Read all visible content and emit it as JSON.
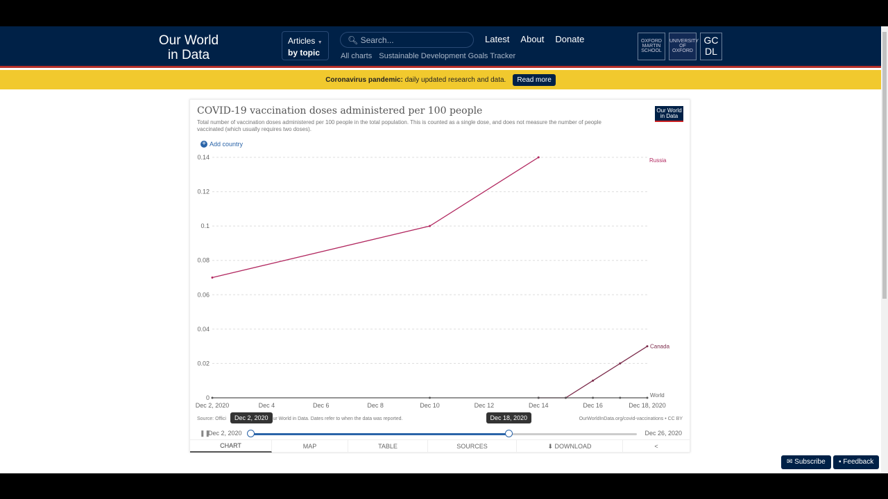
{
  "nav": {
    "logo_line1": "Our World",
    "logo_line2": "in Data",
    "articles": "Articles",
    "by_topic": "by topic",
    "search_placeholder": "Search...",
    "links": [
      "Latest",
      "About",
      "Donate"
    ],
    "sublinks": [
      "All charts",
      "Sustainable Development Goals Tracker"
    ],
    "partners": [
      "OXFORD MARTIN SCHOOL",
      "UNIVERSITY OF OXFORD",
      "GC DL"
    ]
  },
  "banner": {
    "bold": "Coronavirus pandemic:",
    "text": "daily updated research and data.",
    "button": "Read more"
  },
  "card": {
    "badge": "Our World in Data",
    "add_country": "Add country",
    "source": "Source: Official data collated by Our World in Data. Dates refer to when the data was reported.",
    "source_visible_left": "Source: Offici",
    "source_visible_right": "Our World in Data. Dates refer to when the data was reported.",
    "license": "OurWorldInData.org/covid-vaccinations • CC BY",
    "timeline": {
      "start_label": "Dec 2, 2020",
      "end_label": "Dec 26, 2020",
      "handle_start": "Dec 2, 2020",
      "handle_end": "Dec 18, 2020",
      "start_fraction": 0,
      "end_fraction": 0.667
    },
    "tabs": [
      "CHART",
      "MAP",
      "TABLE",
      "SOURCES",
      "DOWNLOAD"
    ],
    "active_tab": "CHART"
  },
  "chart_data": {
    "type": "line",
    "title": "COVID-19 vaccination doses administered per 100 people",
    "subtitle": "Total number of vaccination doses administered per 100 people in the total population. This is counted as a single dose, and does not measure the number of people vaccinated (which usually requires two doses).",
    "x_range": [
      2,
      18
    ],
    "x_ticks": [
      {
        "v": 2,
        "l": "Dec 2, 2020"
      },
      {
        "v": 4,
        "l": "Dec 4"
      },
      {
        "v": 6,
        "l": "Dec 6"
      },
      {
        "v": 8,
        "l": "Dec 8"
      },
      {
        "v": 10,
        "l": "Dec 10"
      },
      {
        "v": 12,
        "l": "Dec 12"
      },
      {
        "v": 14,
        "l": "Dec 14"
      },
      {
        "v": 16,
        "l": "Dec 16"
      },
      {
        "v": 18,
        "l": "Dec 18, 2020"
      }
    ],
    "ylim": [
      0,
      0.14
    ],
    "y_ticks": [
      {
        "v": 0,
        "l": "0"
      },
      {
        "v": 0.02,
        "l": "0.02"
      },
      {
        "v": 0.04,
        "l": "0.04"
      },
      {
        "v": 0.06,
        "l": "0.06"
      },
      {
        "v": 0.08,
        "l": "0.08"
      },
      {
        "v": 0.1,
        "l": "0.1"
      },
      {
        "v": 0.12,
        "l": "0.12"
      },
      {
        "v": 0.14,
        "l": "0.14"
      }
    ],
    "grid": true,
    "series": [
      {
        "name": "Russia",
        "color": "#b1275f",
        "x": [
          2,
          10,
          14
        ],
        "y": [
          0.07,
          0.1,
          0.14
        ]
      },
      {
        "name": "Canada",
        "color": "#7b2a4a",
        "x": [
          14,
          15,
          16,
          17,
          18
        ],
        "y": [
          0,
          0,
          0.01,
          0.02,
          0.03
        ]
      },
      {
        "name": "World",
        "color": "#555555",
        "x": [
          2,
          10,
          14,
          15,
          16,
          17,
          18
        ],
        "y": [
          0,
          0,
          0,
          0,
          0,
          0,
          0
        ]
      }
    ]
  },
  "footer": {
    "subscribe": "Subscribe",
    "feedback": "Feedback"
  }
}
